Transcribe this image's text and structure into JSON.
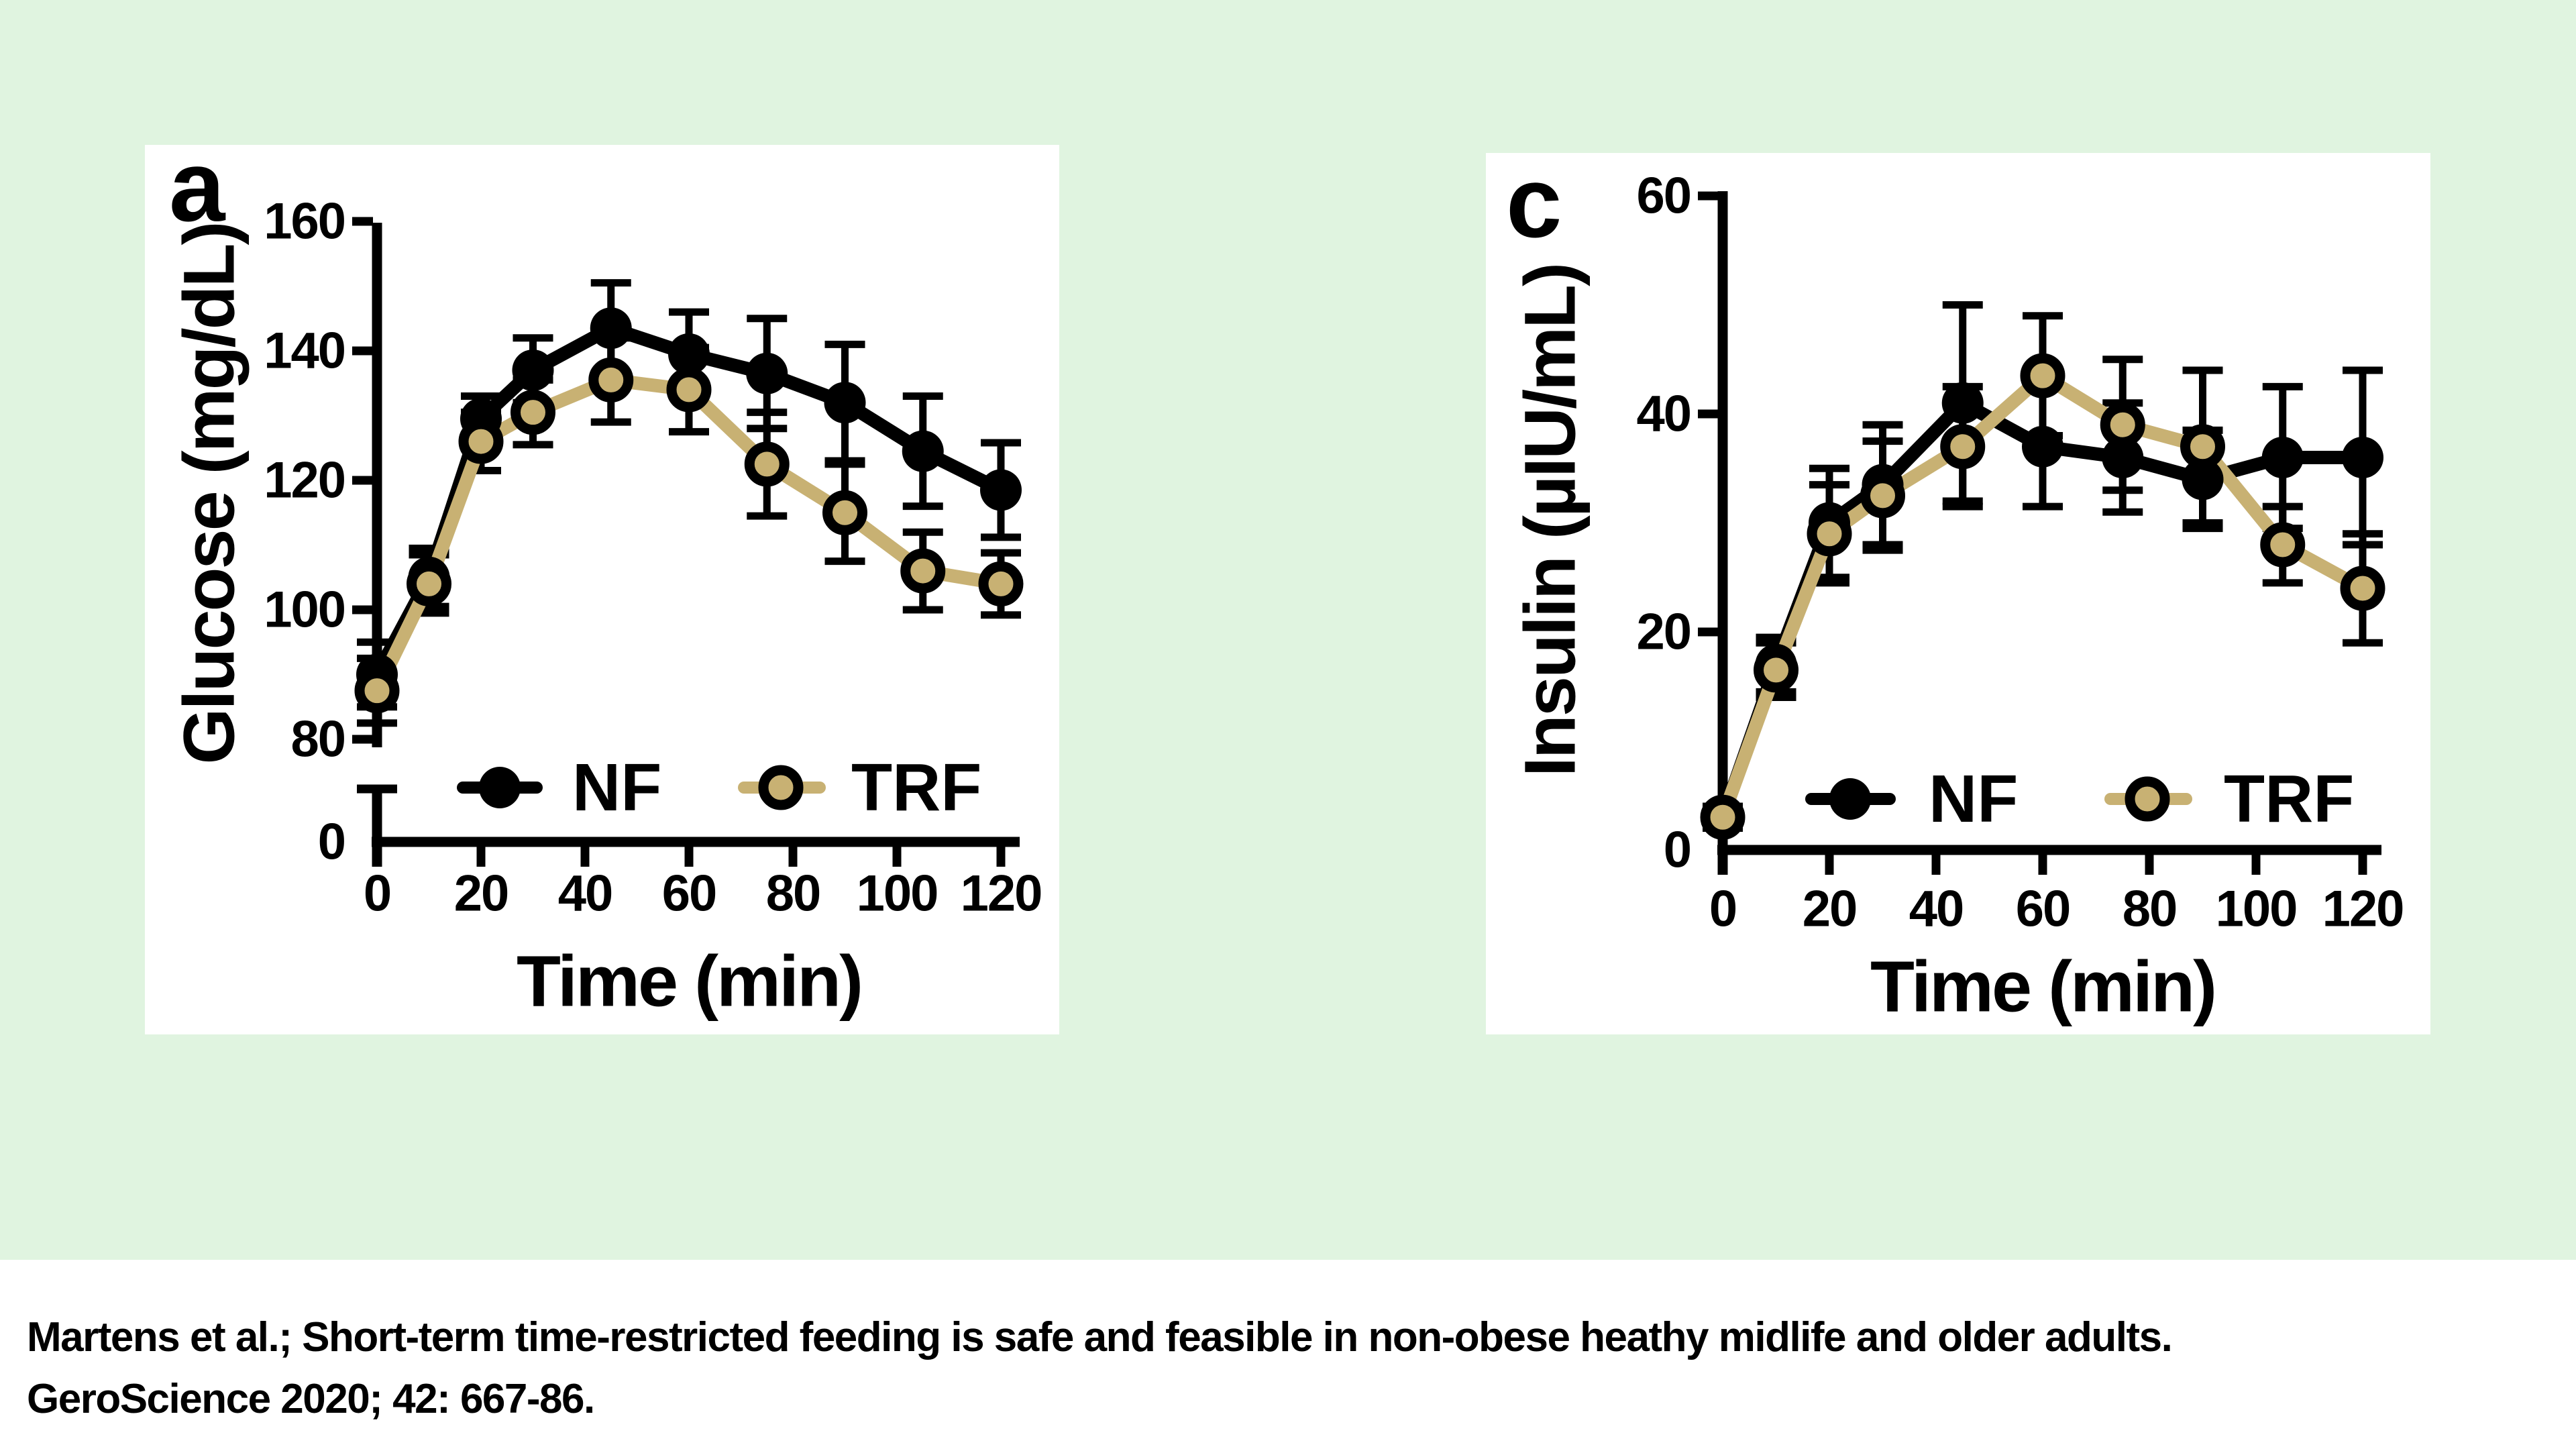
{
  "page": {
    "background_color": "#e0f4e0",
    "panel_color": "#ffffff",
    "text_color": "#000000"
  },
  "colors": {
    "nf": "#000000",
    "trf": "#c8b173",
    "error_bar": "#000000",
    "axis": "#000000"
  },
  "citation": {
    "line1": "Martens et al.; Short-term time-restricted feeding is safe and feasible in non-obese heathy midlife and older adults.",
    "line2": "GeroScience 2020; 42: 667-86."
  },
  "chart_data": [
    {
      "type": "line",
      "panel_label": "a",
      "xlabel": "Time (min)",
      "ylabel": "Glucose (mg/dL)",
      "x": [
        0,
        10,
        20,
        30,
        45,
        60,
        75,
        90,
        105,
        120
      ],
      "x_ticks": [
        0,
        20,
        40,
        60,
        80,
        100,
        120
      ],
      "y_ticks": [
        160,
        140,
        120,
        100,
        80
      ],
      "y_zero_label": "0",
      "axis_break": true,
      "xlim": [
        0,
        120
      ],
      "ylim": [
        80,
        160
      ],
      "grid": false,
      "legend_position": "inside-bottom",
      "series": [
        {
          "name": "NF",
          "marker": "filled",
          "color": "#000000",
          "values": [
            90,
            105,
            129.5,
            137,
            143.5,
            139.5,
            136.5,
            132,
            124.5,
            118.5
          ],
          "sem": [
            5,
            4.5,
            3.5,
            5,
            7,
            6.5,
            8.5,
            9,
            8.5,
            7.3
          ]
        },
        {
          "name": "TRF",
          "marker": "ring",
          "color": "#c8b173",
          "values": [
            87.5,
            104,
            126,
            130.5,
            135.5,
            134,
            122.5,
            115,
            106,
            104
          ],
          "sem": [
            5,
            4.5,
            4.5,
            5,
            6.5,
            6.5,
            8,
            7.5,
            6,
            4.8
          ]
        }
      ]
    },
    {
      "type": "line",
      "panel_label": "c",
      "xlabel": "Time (min)",
      "ylabel": "Insulin (µIU/mL)",
      "x": [
        0,
        10,
        20,
        30,
        45,
        60,
        75,
        90,
        105,
        120
      ],
      "x_ticks": [
        0,
        20,
        40,
        60,
        80,
        100,
        120
      ],
      "y_ticks": [
        60,
        40,
        20
      ],
      "y_zero_label": "0",
      "axis_break": false,
      "xlim": [
        0,
        120
      ],
      "ylim": [
        0,
        60
      ],
      "grid": false,
      "legend_position": "inside-bottom",
      "series": [
        {
          "name": "NF",
          "marker": "filled",
          "color": "#000000",
          "values": [
            3,
            17,
            30,
            33.5,
            41,
            37,
            36,
            34,
            36,
            36
          ],
          "sem": [
            1,
            2.5,
            5,
            5.5,
            9,
            5.5,
            5,
            4.5,
            6.5,
            8
          ]
        },
        {
          "name": "TRF",
          "marker": "ring",
          "color": "#c8b173",
          "values": [
            3,
            16.5,
            29,
            32.5,
            37,
            43.5,
            39,
            37,
            28,
            24
          ],
          "sem": [
            1,
            2.5,
            4.5,
            5,
            5.5,
            5.5,
            6,
            7,
            3.5,
            5
          ]
        }
      ]
    }
  ]
}
